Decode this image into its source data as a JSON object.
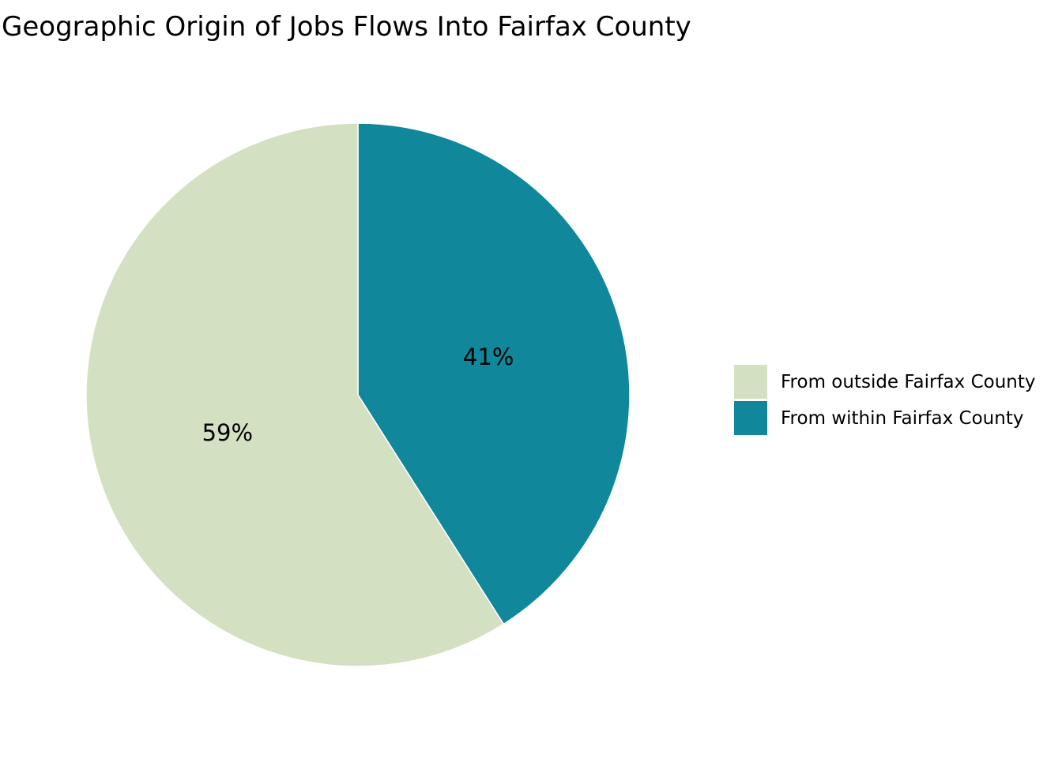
{
  "chart_data": {
    "type": "pie",
    "title": "Geographic Origin of Jobs Flows Into Fairfax County",
    "slices": [
      {
        "label": "From outside Fairfax County",
        "value": 59,
        "display": "59%",
        "color": "#d3e0c2"
      },
      {
        "label": "From within Fairfax County",
        "value": 41,
        "display": "41%",
        "color": "#10879b"
      }
    ],
    "start": "12 o'clock",
    "direction": "clockwise from within slice",
    "legend_position": "right"
  }
}
